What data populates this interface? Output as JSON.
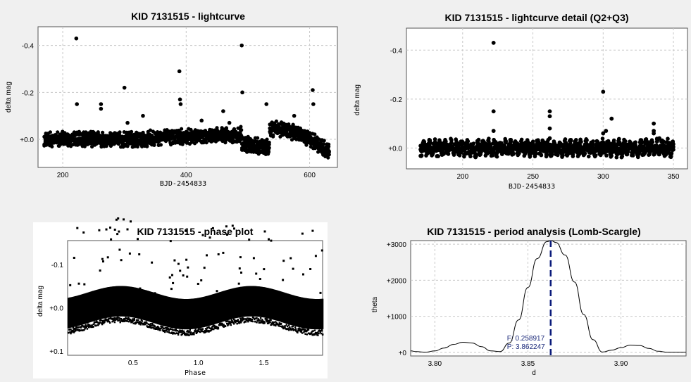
{
  "chart_data": [
    {
      "id": "lc",
      "type": "scatter",
      "title": "KID 7131515 - lightcurve",
      "xlabel": "BJD-2454833",
      "ylabel": "delta mag",
      "xlim": [
        160,
        645
      ],
      "ylim": [
        0.12,
        -0.48
      ],
      "y_inverted": true,
      "xticks": [
        {
          "v": 200,
          "label": "200"
        },
        {
          "v": 400,
          "label": "400"
        },
        {
          "v": 600,
          "label": "600"
        }
      ],
      "yticks": [
        {
          "v": -0.4,
          "label": "-0.4"
        },
        {
          "v": -0.2,
          "label": "-0.2"
        },
        {
          "v": 0.0,
          "label": "+0.0"
        }
      ],
      "grid": true,
      "series": [
        {
          "x_range": [
            170,
            632
          ],
          "segments": [
            [
              170,
              332,
              0.0
            ],
            [
              332,
              492,
              0.0
            ],
            [
              492,
              535,
              0.02
            ],
            [
              535,
              632,
              -0.04
            ]
          ]
        }
      ],
      "outliers": [
        [
          222,
          -0.43
        ],
        [
          223,
          -0.15
        ],
        [
          262,
          -0.15
        ],
        [
          262,
          -0.13
        ],
        [
          300,
          -0.22
        ],
        [
          305,
          -0.07
        ],
        [
          330,
          -0.1
        ],
        [
          389,
          -0.29
        ],
        [
          390,
          -0.17
        ],
        [
          391,
          -0.15
        ],
        [
          425,
          -0.08
        ],
        [
          460,
          -0.12
        ],
        [
          490,
          -0.4
        ],
        [
          491,
          -0.2
        ],
        [
          530,
          -0.15
        ],
        [
          605,
          -0.21
        ],
        [
          606,
          -0.15
        ],
        [
          575,
          -0.1
        ],
        [
          470,
          -0.07
        ]
      ]
    },
    {
      "id": "detail",
      "type": "scatter",
      "title": "KID 7131515 - lightcurve detail (Q2+Q3)",
      "xlabel": "BJD-2454833",
      "ylabel": "delta mag",
      "xlim": [
        160,
        360
      ],
      "ylim": [
        0.085,
        -0.49
      ],
      "y_inverted": true,
      "xticks": [
        {
          "v": 200,
          "label": "200"
        },
        {
          "v": 250,
          "label": "250"
        },
        {
          "v": 300,
          "label": "300"
        },
        {
          "v": 350,
          "label": "350"
        }
      ],
      "yticks": [
        {
          "v": -0.4,
          "label": "-0.4"
        },
        {
          "v": -0.2,
          "label": "-0.2"
        },
        {
          "v": 0.0,
          "label": "+0.0"
        }
      ],
      "grid": true,
      "series": [
        {
          "x_range": [
            170,
            350
          ]
        }
      ],
      "outliers": [
        [
          222,
          -0.43
        ],
        [
          222,
          -0.15
        ],
        [
          222,
          -0.07
        ],
        [
          262,
          -0.15
        ],
        [
          262,
          -0.13
        ],
        [
          262,
          -0.08
        ],
        [
          300,
          -0.23
        ],
        [
          302,
          -0.07
        ],
        [
          306,
          -0.12
        ],
        [
          300,
          -0.06
        ],
        [
          336,
          -0.1
        ],
        [
          336,
          -0.07
        ],
        [
          336,
          -0.06
        ],
        [
          262,
          -0.04
        ],
        [
          340,
          -0.04
        ]
      ]
    },
    {
      "id": "phase",
      "type": "scatter",
      "title": "KID 7131515 - phase plot",
      "xlabel": "Phase",
      "ylabel": "delta mag",
      "xlim": [
        0.0,
        1.95
      ],
      "ylim": [
        0.11,
        -0.155
      ],
      "y_inverted": true,
      "xticks": [
        {
          "v": 0.5,
          "label": "0.5"
        },
        {
          "v": 1.0,
          "label": "1.0"
        },
        {
          "v": 1.5,
          "label": "1.5"
        }
      ],
      "yticks": [
        {
          "v": -0.1,
          "label": "-0.1"
        },
        {
          "v": 0.0,
          "label": "+0.0"
        },
        {
          "v": 0.1,
          "label": "+0.1"
        }
      ],
      "grid": false,
      "series": [
        {
          "band_center": 0.0,
          "band_halfwidth": 0.035,
          "amplitude": 0.015
        }
      ]
    },
    {
      "id": "period",
      "type": "line",
      "title": "KID 7131515 - period analysis (Lomb-Scargle)",
      "xlabel": "d",
      "ylabel": "theta",
      "xlim": [
        3.787,
        3.935
      ],
      "ylim": [
        -100,
        3100
      ],
      "xticks": [
        {
          "v": 3.8,
          "label": "3.80"
        },
        {
          "v": 3.85,
          "label": "3.85"
        },
        {
          "v": 3.9,
          "label": "3.90"
        }
      ],
      "yticks": [
        {
          "v": 0,
          "label": "+0"
        },
        {
          "v": 1000,
          "label": "+1000"
        },
        {
          "v": 2000,
          "label": "+2000"
        },
        {
          "v": 3000,
          "label": "+3000"
        }
      ],
      "grid": true,
      "peak_line_color": "#0a1a7a",
      "points": [
        [
          3.787,
          40
        ],
        [
          3.79,
          20
        ],
        [
          3.795,
          5
        ],
        [
          3.8,
          40
        ],
        [
          3.805,
          120
        ],
        [
          3.81,
          220
        ],
        [
          3.815,
          280
        ],
        [
          3.82,
          260
        ],
        [
          3.825,
          160
        ],
        [
          3.83,
          40
        ],
        [
          3.835,
          20
        ],
        [
          3.84,
          260
        ],
        [
          3.845,
          900
        ],
        [
          3.85,
          1800
        ],
        [
          3.855,
          2600
        ],
        [
          3.8602,
          3070
        ],
        [
          3.8625,
          3100
        ],
        [
          3.865,
          3050
        ],
        [
          3.87,
          2700
        ],
        [
          3.875,
          1950
        ],
        [
          3.88,
          1050
        ],
        [
          3.885,
          350
        ],
        [
          3.89,
          10
        ],
        [
          3.895,
          60
        ],
        [
          3.9,
          130
        ],
        [
          3.905,
          200
        ],
        [
          3.91,
          190
        ],
        [
          3.915,
          110
        ],
        [
          3.92,
          30
        ],
        [
          3.925,
          5
        ],
        [
          3.93,
          5
        ],
        [
          3.935,
          5
        ]
      ],
      "peak": {
        "x": 3.862247,
        "F_label": "F: 0.258917",
        "P_label": "P: 3.862247"
      }
    }
  ]
}
